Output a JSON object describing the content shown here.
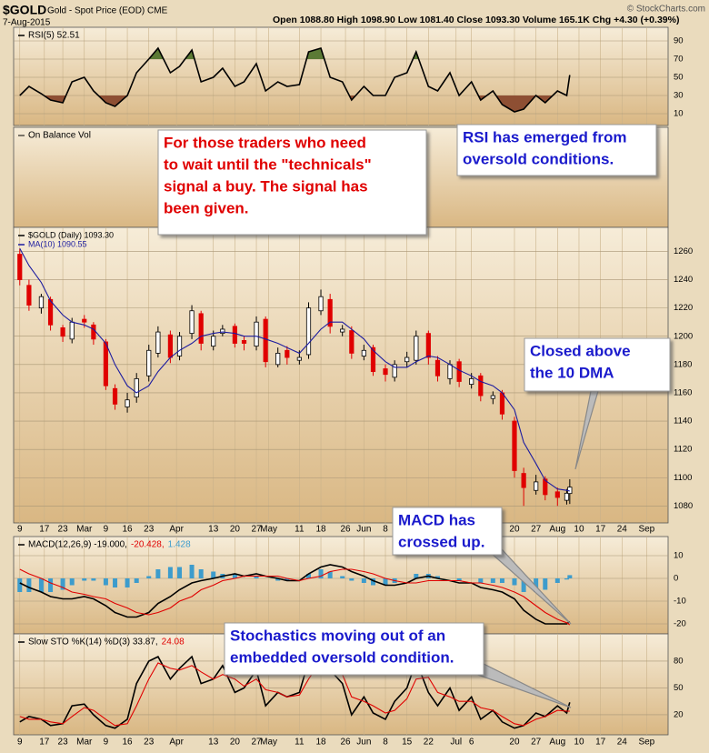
{
  "chart_data": {
    "type": "stock",
    "title": "$GOLD",
    "subtitle": "Gold - Spot Price (EOD) CME",
    "date": "7-Aug-2015",
    "quote": "Open 1088.80  High 1098.90  Low 1081.40  Close 1093.30  Volume 165.1K  Chg +4.30 (+0.39%)",
    "credit": "© StockCharts.com",
    "x": [
      "02-09",
      "02-12",
      "02-16",
      "02-19",
      "02-23",
      "02-26",
      "03-02",
      "03-05",
      "03-09",
      "03-12",
      "03-16",
      "03-19",
      "03-23",
      "03-26",
      "03-30",
      "04-02",
      "04-06",
      "04-09",
      "04-13",
      "04-16",
      "04-20",
      "04-23",
      "04-27",
      "04-30",
      "05-04",
      "05-07",
      "05-11",
      "05-14",
      "05-18",
      "05-21",
      "05-25",
      "05-28",
      "06-01",
      "06-04",
      "06-08",
      "06-11",
      "06-15",
      "06-18",
      "06-22",
      "06-25",
      "06-29",
      "07-02",
      "07-06",
      "07-09",
      "07-13",
      "07-16",
      "07-20",
      "07-23",
      "07-27",
      "07-30",
      "08-03",
      "08-06",
      "08-07"
    ],
    "xlim": [
      "02-07",
      "09-08"
    ],
    "xticks": [
      {
        "value": "02-09",
        "label": "9"
      },
      {
        "value": "02-17",
        "label": "17"
      },
      {
        "value": "02-23",
        "label": "23"
      },
      {
        "value": "03-02",
        "label": "Mar"
      },
      {
        "value": "03-09",
        "label": "9"
      },
      {
        "value": "03-16",
        "label": "16"
      },
      {
        "value": "03-23",
        "label": "23"
      },
      {
        "value": "04-01",
        "label": "Apr"
      },
      {
        "value": "04-13",
        "label": "13"
      },
      {
        "value": "04-20",
        "label": "20"
      },
      {
        "value": "04-27",
        "label": "27"
      },
      {
        "value": "05-01",
        "label": "May"
      },
      {
        "value": "05-11",
        "label": "11"
      },
      {
        "value": "05-18",
        "label": "18"
      },
      {
        "value": "05-26",
        "label": "26"
      },
      {
        "value": "06-01",
        "label": "Jun"
      },
      {
        "value": "06-08",
        "label": "8"
      },
      {
        "value": "06-15",
        "label": "15"
      },
      {
        "value": "06-22",
        "label": "22"
      },
      {
        "value": "07-01",
        "label": "Jul"
      },
      {
        "value": "07-06",
        "label": "6"
      },
      {
        "value": "07-20",
        "label": "20"
      },
      {
        "value": "07-27",
        "label": "27"
      },
      {
        "value": "08-03",
        "label": "Aug"
      },
      {
        "value": "08-10",
        "label": "10"
      },
      {
        "value": "08-17",
        "label": "17"
      },
      {
        "value": "08-24",
        "label": "24"
      },
      {
        "value": "09-01",
        "label": "Sep"
      }
    ],
    "grid": true,
    "panels": [
      {
        "type": "line",
        "ylim": [
          -3,
          105
        ],
        "yticks": [
          10,
          30,
          50,
          70,
          90
        ],
        "legend_layout": "inline",
        "fill_above": 70,
        "fill_above_color": "#5b7a35",
        "fill_below": 30,
        "fill_below_color": "#8e4f33",
        "series": [
          {
            "name": "RSI(5) 52.51",
            "color": "#000000",
            "values": [
              30,
              40,
              32,
              25,
              22,
              45,
              50,
              35,
              22,
              18,
              30,
              55,
              70,
              82,
              55,
              62,
              80,
              45,
              50,
              60,
              40,
              45,
              65,
              35,
              45,
              40,
              42,
              78,
              82,
              50,
              45,
              25,
              40,
              30,
              30,
              50,
              55,
              78,
              40,
              35,
              55,
              30,
              45,
              25,
              35,
              20,
              12,
              15,
              30,
              22,
              35,
              30,
              52.51
            ]
          }
        ]
      },
      {
        "type": "line",
        "label": "On Balance Vol"
      },
      {
        "type": "candlestick",
        "ylim": [
          1068,
          1277
        ],
        "yticks": [
          1080,
          1100,
          1120,
          1140,
          1160,
          1180,
          1200,
          1220,
          1240,
          1260
        ],
        "legend_layout": "stacked",
        "ohlc": {
          "name": "$GOLD (Daily) 1093.30",
          "up_color": "#ffffff",
          "down_color": "#e00000",
          "open": [
            1258,
            1236,
            1220,
            1226,
            1206,
            1198,
            1212,
            1208,
            1196,
            1163,
            1150,
            1157,
            1172,
            1188,
            1201,
            1186,
            1202,
            1216,
            1193,
            1202,
            1207,
            1197,
            1193,
            1212,
            1180,
            1190,
            1183,
            1187,
            1218,
            1226,
            1203,
            1204,
            1186,
            1192,
            1177,
            1171,
            1182,
            1183,
            1202,
            1183,
            1170,
            1182,
            1166,
            1172,
            1156,
            1160,
            1140,
            1103,
            1091,
            1099,
            1090,
            1084,
            1088.8
          ],
          "high": [
            1262,
            1240,
            1230,
            1228,
            1208,
            1213,
            1215,
            1210,
            1198,
            1166,
            1160,
            1174,
            1194,
            1207,
            1204,
            1203,
            1222,
            1218,
            1204,
            1208,
            1209,
            1200,
            1214,
            1214,
            1192,
            1193,
            1190,
            1224,
            1233,
            1230,
            1208,
            1207,
            1194,
            1194,
            1180,
            1183,
            1189,
            1204,
            1204,
            1186,
            1183,
            1184,
            1174,
            1174,
            1161,
            1162,
            1143,
            1107,
            1102,
            1101,
            1093,
            1092,
            1098.9
          ],
          "low": [
            1236,
            1218,
            1216,
            1204,
            1196,
            1195,
            1206,
            1194,
            1162,
            1148,
            1146,
            1153,
            1168,
            1185,
            1181,
            1183,
            1198,
            1190,
            1190,
            1200,
            1192,
            1190,
            1190,
            1178,
            1178,
            1180,
            1180,
            1184,
            1215,
            1202,
            1200,
            1184,
            1183,
            1172,
            1168,
            1168,
            1178,
            1180,
            1180,
            1168,
            1166,
            1164,
            1163,
            1154,
            1152,
            1141,
            1100,
            1080,
            1088,
            1084,
            1080,
            1081,
            1081.4
          ],
          "close": [
            1240,
            1222,
            1228,
            1208,
            1200,
            1210,
            1210,
            1198,
            1165,
            1152,
            1155,
            1170,
            1190,
            1203,
            1185,
            1200,
            1218,
            1195,
            1200,
            1205,
            1195,
            1195,
            1210,
            1182,
            1188,
            1185,
            1185,
            1220,
            1228,
            1207,
            1205,
            1188,
            1190,
            1175,
            1173,
            1180,
            1185,
            1200,
            1185,
            1172,
            1180,
            1168,
            1170,
            1158,
            1158,
            1145,
            1105,
            1093,
            1097,
            1088,
            1086,
            1089,
            1093.3
          ]
        },
        "series": [
          {
            "name": "MA(10) 1090.55",
            "color": "#1c1ca0",
            "values": [
              1262,
              1250,
              1238,
              1225,
              1215,
              1210,
              1208,
              1205,
              1195,
              1180,
              1165,
              1160,
              1165,
              1175,
              1185,
              1190,
              1195,
              1200,
              1202,
              1203,
              1202,
              1200,
              1200,
              1198,
              1195,
              1192,
              1188,
              1195,
              1205,
              1210,
              1210,
              1205,
              1198,
              1190,
              1182,
              1178,
              1178,
              1182,
              1186,
              1185,
              1180,
              1176,
              1172,
              1168,
              1165,
              1160,
              1148,
              1125,
              1110,
              1098,
              1092,
              1091,
              1090.55
            ]
          }
        ]
      },
      {
        "type": "macd",
        "ylim": [
          -24.4,
          18.4
        ],
        "yticks": [
          -20,
          -10,
          0,
          10
        ],
        "legend_layout": "inline",
        "series": [
          {
            "name": "MACD(12,26,9) -19.000,",
            "color": "#000000",
            "values": [
              -2,
              -4,
              -6,
              -8,
              -9,
              -9,
              -8,
              -9,
              -12,
              -15,
              -17,
              -17,
              -15,
              -11,
              -8,
              -5,
              -2,
              -1,
              0,
              1,
              2,
              1,
              2,
              1,
              0,
              -1,
              -1,
              2,
              5,
              6,
              5,
              3,
              1,
              -1,
              -3,
              -3,
              -2,
              0,
              1,
              0,
              -1,
              -2,
              -2,
              -4,
              -5,
              -6,
              -9,
              -14,
              -18,
              -20,
              -20,
              -20,
              -19
            ]
          },
          {
            "name": "-20.428,",
            "color": "#e00000",
            "values": [
              4,
              2,
              0,
              -2,
              -4,
              -6,
              -7,
              -8,
              -9,
              -11,
              -13,
              -15,
              -16,
              -15,
              -13,
              -10,
              -8,
              -5,
              -3,
              -1,
              0,
              1,
              1,
              1,
              1,
              0,
              -1,
              0,
              1,
              3,
              4,
              4,
              3,
              2,
              0,
              -1,
              -2,
              -2,
              -1,
              -1,
              -1,
              -1,
              -2,
              -2,
              -3,
              -4,
              -6,
              -8,
              -12,
              -15,
              -18,
              -19.5,
              -20.428
            ]
          }
        ],
        "histogram": {
          "name": "1.428",
          "color": "#3d9ccc",
          "values": [
            -6,
            -6,
            -6,
            -6,
            -5,
            -3,
            -1,
            -1,
            -3,
            -4,
            -4,
            -2,
            1,
            4,
            5,
            5,
            6,
            4,
            3,
            2,
            2,
            0,
            1,
            0,
            -1,
            -1,
            0,
            2,
            4,
            3,
            1,
            -1,
            -2,
            -3,
            -3,
            -2,
            0,
            2,
            2,
            1,
            0,
            -1,
            0,
            -2,
            -2,
            -2,
            -3,
            -6,
            -6,
            -5,
            -2,
            -0.5,
            1.428
          ]
        }
      },
      {
        "type": "line",
        "ylim": [
          -2.4,
          110.5
        ],
        "yticks": [
          20,
          50,
          80
        ],
        "legend_layout": "inline",
        "series": [
          {
            "name": "Slow STO %K(14) %D(3) 33.87,",
            "color": "#000000",
            "values": [
              12,
              18,
              15,
              8,
              10,
              30,
              32,
              20,
              8,
              5,
              15,
              55,
              80,
              85,
              60,
              72,
              85,
              55,
              60,
              75,
              45,
              50,
              70,
              30,
              45,
              40,
              45,
              80,
              88,
              70,
              55,
              20,
              40,
              22,
              15,
              35,
              50,
              80,
              45,
              30,
              50,
              25,
              40,
              15,
              25,
              12,
              5,
              8,
              22,
              18,
              30,
              22,
              33.87
            ]
          },
          {
            "name": "24.08",
            "color": "#e00000",
            "values": [
              18,
              15,
              15,
              12,
              10,
              18,
              28,
              25,
              15,
              8,
              10,
              30,
              60,
              78,
              72,
              70,
              75,
              68,
              60,
              65,
              60,
              52,
              60,
              48,
              45,
              40,
              42,
              60,
              80,
              78,
              65,
              40,
              35,
              30,
              22,
              25,
              38,
              60,
              62,
              45,
              40,
              35,
              35,
              28,
              25,
              18,
              10,
              8,
              15,
              18,
              25,
              24,
              24.08
            ]
          }
        ]
      }
    ]
  },
  "annotations": [
    {
      "color": "#e00000",
      "lines": [
        "For those traders who need",
        "to wait until the \"technicals\"",
        "signal a buy. The signal has",
        "been given."
      ]
    },
    {
      "color": "#1a1acc",
      "lines": [
        "RSI has emerged from",
        "oversold conditions."
      ]
    },
    {
      "color": "#1a1acc",
      "lines": [
        "Closed above",
        "the 10 DMA"
      ]
    },
    {
      "color": "#1a1acc",
      "lines": [
        "MACD has",
        "crossed up."
      ]
    },
    {
      "color": "#1a1acc",
      "lines": [
        "Stochastics moving out of an",
        "embedded oversold condition."
      ]
    }
  ]
}
